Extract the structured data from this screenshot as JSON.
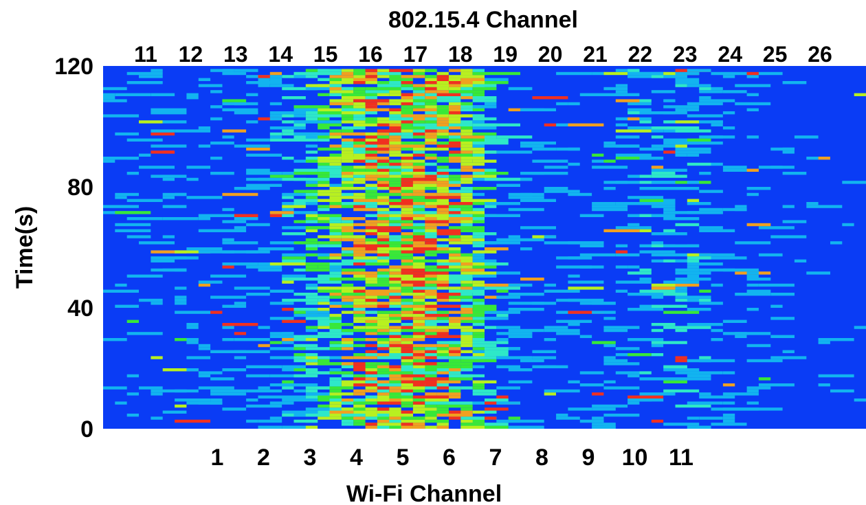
{
  "chart_data": {
    "type": "heatmap",
    "title": "802.15.4 Channel",
    "xlabel": "Wi-Fi Channel",
    "ylabel": "Time(s)",
    "ylim": [
      0,
      120
    ],
    "y_ticks": [
      0,
      40,
      80,
      120
    ],
    "top_axis": {
      "label": "802.15.4 Channel",
      "ticks": [
        "11",
        "12",
        "13",
        "14",
        "15",
        "16",
        "17",
        "18",
        "19",
        "20",
        "21",
        "22",
        "23",
        "24",
        "25",
        "26"
      ]
    },
    "bottom_axis": {
      "label": "Wi-Fi Channel",
      "ticks": [
        "1",
        "2",
        "3",
        "4",
        "5",
        "6",
        "7",
        "8",
        "9",
        "10",
        "11"
      ]
    },
    "background_color": "#0a3cf5",
    "colormap": [
      "#0a3cf5",
      "#12b4f0",
      "#2ee8c8",
      "#38e838",
      "#b8f020",
      "#f0a020",
      "#f03020"
    ],
    "activity_by_channel": [
      {
        "channel": "11",
        "level": 0.12
      },
      {
        "channel": "12",
        "level": 0.12
      },
      {
        "channel": "13",
        "level": 0.14
      },
      {
        "channel": "14",
        "level": 0.16
      },
      {
        "channel": "15",
        "level": 0.55
      },
      {
        "channel": "16",
        "level": 0.85
      },
      {
        "channel": "17",
        "level": 0.9
      },
      {
        "channel": "18",
        "level": 0.8
      },
      {
        "channel": "19",
        "level": 0.12
      },
      {
        "channel": "20",
        "level": 0.08
      },
      {
        "channel": "21",
        "level": 0.16
      },
      {
        "channel": "22",
        "level": 0.28
      },
      {
        "channel": "23",
        "level": 0.22
      },
      {
        "channel": "24",
        "level": 0.16
      },
      {
        "channel": "25",
        "level": 0.05
      },
      {
        "channel": "26",
        "level": 0.03
      }
    ],
    "grid": false,
    "legend": "none"
  }
}
